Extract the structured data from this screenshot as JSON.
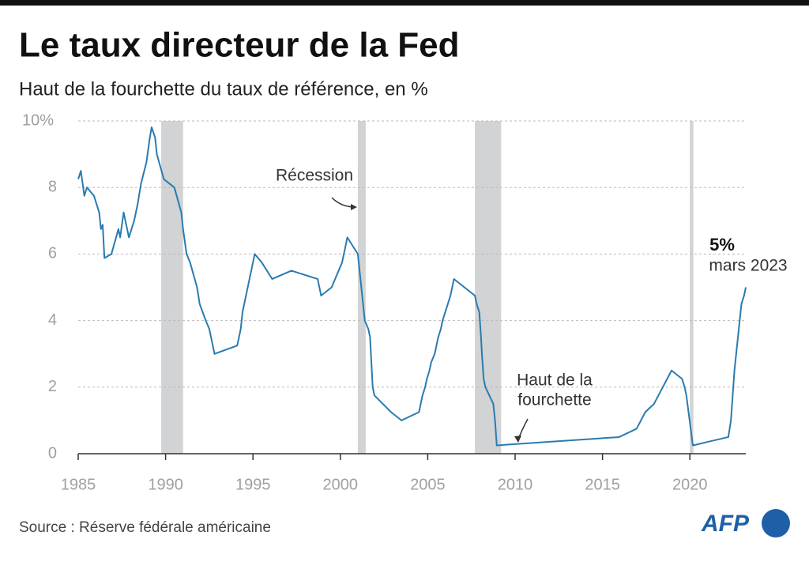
{
  "chart_data": {
    "type": "line",
    "title": "Le taux directeur de la Fed",
    "subtitle": "Haut de la fourchette du taux de référence, en %",
    "source": "Source : Réserve fédérale américaine",
    "logo": "AFP",
    "color": "#2a7bb0",
    "grid": true,
    "xlim": [
      1985,
      2023.2
    ],
    "xticks": [
      1985,
      1990,
      1995,
      2000,
      2005,
      2010,
      2015,
      2020
    ],
    "ylim": [
      0,
      10
    ],
    "yticks": [
      0,
      2,
      4,
      6,
      8,
      {
        "value": 10,
        "label": "10%"
      }
    ],
    "recessions": [
      [
        1989.75,
        1991.0
      ],
      [
        2001.0,
        2001.45
      ],
      [
        2007.7,
        2009.2
      ],
      [
        2020.0,
        2020.2
      ]
    ],
    "annotations": {
      "recession": "Récession",
      "range": [
        "Haut de la",
        "fourchette"
      ],
      "last_value": "5%",
      "last_date": "mars 2023"
    },
    "x": [
      1985.0,
      1985.15,
      1985.35,
      1985.5,
      1985.9,
      1986.2,
      1986.3,
      1986.4,
      1986.5,
      1986.9,
      1987.3,
      1987.4,
      1987.6,
      1987.8,
      1987.9,
      1988.2,
      1988.4,
      1988.6,
      1988.9,
      1989.1,
      1989.2,
      1989.4,
      1989.5,
      1989.9,
      1990.5,
      1990.9,
      1991.0,
      1991.2,
      1991.4,
      1991.8,
      1991.95,
      1992.3,
      1992.5,
      1992.7,
      1992.8,
      1994.1,
      1994.3,
      1994.4,
      1994.6,
      1994.9,
      1995.1,
      1995.5,
      1996.1,
      1997.2,
      1998.7,
      1998.8,
      1998.9,
      1999.5,
      1999.7,
      1999.9,
      2000.1,
      2000.2,
      2000.4,
      2001.0,
      2001.1,
      2001.2,
      2001.3,
      2001.4,
      2001.6,
      2001.7,
      2001.75,
      2001.8,
      2001.85,
      2001.95,
      2002.9,
      2003.5,
      2004.5,
      2004.6,
      2004.7,
      2004.85,
      2004.95,
      2005.1,
      2005.2,
      2005.4,
      2005.5,
      2005.6,
      2005.75,
      2005.85,
      2006.0,
      2006.15,
      2006.3,
      2006.4,
      2006.5,
      2007.7,
      2007.8,
      2007.95,
      2008.05,
      2008.1,
      2008.2,
      2008.3,
      2008.75,
      2008.85,
      2008.95,
      2015.95,
      2016.95,
      2017.2,
      2017.45,
      2017.95,
      2018.2,
      2018.45,
      2018.7,
      2018.95,
      2019.55,
      2019.7,
      2019.8,
      2020.17,
      2022.2,
      2022.35,
      2022.45,
      2022.55,
      2022.7,
      2022.85,
      2022.95,
      2023.1,
      2023.2
    ],
    "values": [
      8.25,
      8.5,
      7.75,
      8.0,
      7.75,
      7.25,
      6.75,
      6.88,
      5.88,
      6.0,
      6.75,
      6.5,
      7.25,
      6.75,
      6.5,
      7.0,
      7.5,
      8.13,
      8.75,
      9.5,
      9.81,
      9.5,
      9.0,
      8.25,
      8.0,
      7.25,
      6.75,
      6.0,
      5.75,
      5.0,
      4.5,
      4.0,
      3.75,
      3.25,
      3.0,
      3.25,
      3.75,
      4.25,
      4.75,
      5.5,
      6.0,
      5.75,
      5.25,
      5.5,
      5.25,
      5.0,
      4.75,
      5.0,
      5.25,
      5.5,
      5.75,
      6.0,
      6.5,
      6.0,
      5.5,
      5.0,
      4.5,
      4.0,
      3.75,
      3.5,
      3.0,
      2.5,
      2.0,
      1.75,
      1.25,
      1.0,
      1.25,
      1.5,
      1.75,
      2.0,
      2.25,
      2.5,
      2.75,
      3.0,
      3.25,
      3.5,
      3.75,
      4.0,
      4.25,
      4.5,
      4.75,
      5.0,
      5.25,
      4.75,
      4.5,
      4.25,
      3.5,
      3.0,
      2.25,
      2.0,
      1.5,
      1.0,
      0.25,
      0.5,
      0.75,
      1.0,
      1.25,
      1.5,
      1.75,
      2.0,
      2.25,
      2.5,
      2.25,
      2.0,
      1.75,
      0.25,
      0.5,
      1.0,
      1.75,
      2.5,
      3.25,
      4.0,
      4.5,
      4.75,
      5.0
    ]
  }
}
